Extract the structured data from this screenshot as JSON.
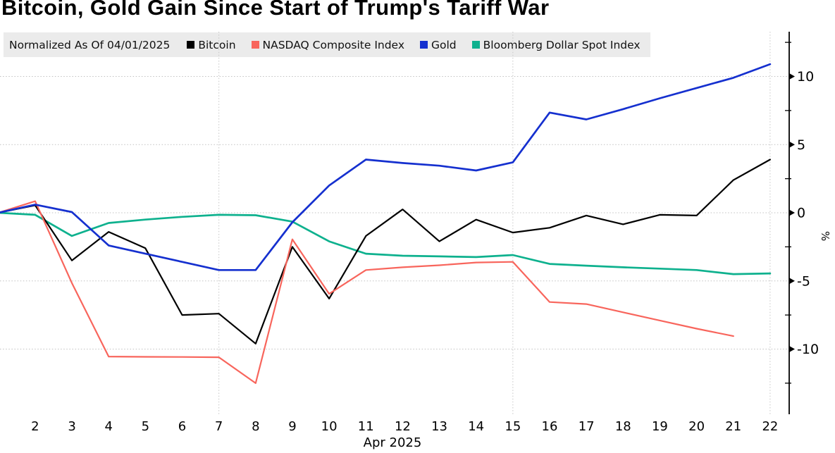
{
  "title": "Bitcoin, Gold Gain Since Start of Trump's Tariff War",
  "legend": {
    "note": "Normalized As Of 04/01/2025"
  },
  "chart_data": {
    "type": "line",
    "title": "Bitcoin, Gold Gain Since Start of Trump's Tariff War",
    "subtitle": "Normalized As Of 04/01/2025",
    "x_axis_label": "Apr 2025",
    "ylabel": "%",
    "x_unit": "day of April 2025",
    "categories": [
      1,
      2,
      3,
      4,
      5,
      6,
      7,
      8,
      9,
      10,
      11,
      12,
      13,
      14,
      15,
      16,
      17,
      18,
      19,
      20,
      21,
      22
    ],
    "x_ticks": [
      2,
      3,
      4,
      5,
      6,
      7,
      8,
      9,
      10,
      11,
      12,
      13,
      14,
      15,
      16,
      17,
      18,
      19,
      20,
      21,
      22
    ],
    "x_gridline_days": [
      7,
      15,
      22
    ],
    "y_axis": {
      "unit": "%",
      "ylim": [
        -15,
        13
      ],
      "major_ticks": [
        10,
        5,
        0,
        -5,
        -10
      ],
      "minor_ticks": [
        12.5,
        7.5,
        2.5,
        -2.5,
        -7.5,
        -12.5
      ]
    },
    "grid": "dotted horizontal at major ticks; dotted vertical at Apr 7, 15, 22",
    "legend_position": "top",
    "series": [
      {
        "name": "Bitcoin",
        "color": "#000000",
        "values": [
          0,
          0.55,
          -3.5,
          -1.4,
          -2.6,
          -7.5,
          -7.4,
          -9.6,
          -2.5,
          -6.3,
          -1.7,
          0.25,
          -2.1,
          -0.5,
          -1.45,
          -1.1,
          -0.2,
          -0.85,
          -0.15,
          -0.2,
          2.4,
          3.9
        ]
      },
      {
        "name": "NASDAQ Composite Index",
        "color": "#f8655c",
        "values": [
          0,
          0.85,
          -5.15,
          -10.55,
          -10.57,
          -10.58,
          -10.6,
          -12.5,
          -1.95,
          -5.95,
          -4.2,
          -4.0,
          -3.85,
          -3.65,
          -3.6,
          -6.55,
          -6.7,
          -7.3,
          -7.9,
          -8.5,
          -9.05,
          null
        ]
      },
      {
        "name": "Gold",
        "color": "#1530cf",
        "values": [
          0,
          0.6,
          0.05,
          -2.4,
          -3.0,
          -3.6,
          -4.2,
          -4.2,
          -0.7,
          2.0,
          3.9,
          3.65,
          3.45,
          3.1,
          3.7,
          7.35,
          6.85,
          7.6,
          8.4,
          9.15,
          9.9,
          10.9
        ]
      },
      {
        "name": "Bloomberg Dollar Spot Index",
        "color": "#0eb18e",
        "values": [
          0,
          -0.15,
          -1.7,
          -0.75,
          -0.5,
          -0.3,
          -0.15,
          -0.18,
          -0.65,
          -2.1,
          -3.0,
          -3.15,
          -3.2,
          -3.25,
          -3.1,
          -3.75,
          -3.88,
          -4.0,
          -4.1,
          -4.2,
          -4.5,
          -4.45
        ]
      }
    ]
  }
}
